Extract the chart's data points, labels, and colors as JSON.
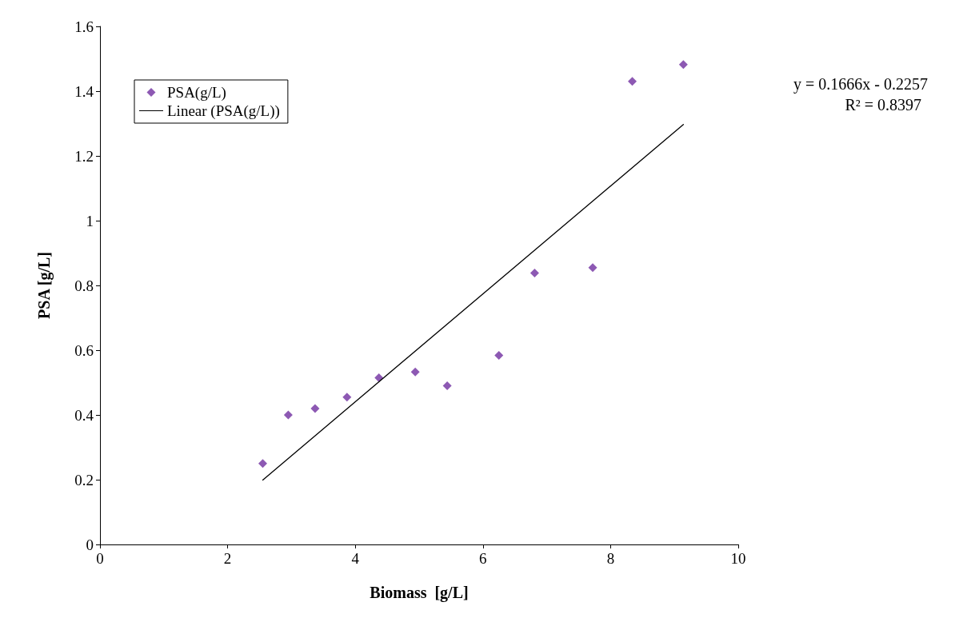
{
  "chart_data": {
    "type": "scatter",
    "xlabel": "Biomass  [g/L]",
    "ylabel": "PSA [g/L]",
    "xlim": [
      0,
      10
    ],
    "xticks": [
      0,
      2,
      4,
      6,
      8,
      10
    ],
    "ylim": [
      0,
      1.6
    ],
    "yticks": [
      0,
      0.2,
      0.4,
      0.6,
      0.8,
      1,
      1.2,
      1.4,
      1.6
    ],
    "grid": false,
    "legend": "top left",
    "marker": "diamond",
    "annotations": [
      "y = 0.1666x - 0.2257",
      "R² = 0.8397"
    ],
    "series": [
      {
        "name": "PSA(g/L)",
        "color": "#7030a0",
        "x": [
          2.55,
          2.95,
          3.37,
          3.87,
          4.37,
          4.94,
          5.44,
          6.25,
          6.81,
          7.72,
          8.34,
          9.14
        ],
        "values": [
          0.25,
          0.4,
          0.42,
          0.455,
          0.515,
          0.533,
          0.49,
          0.584,
          0.838,
          0.855,
          1.43,
          1.482
        ]
      },
      {
        "name": "Linear (PSA(g/L))",
        "type": "line",
        "marker": "none",
        "line_style": "solid",
        "color": "#000000",
        "x": [
          2.55,
          9.14
        ],
        "values": [
          0.199,
          1.297
        ]
      }
    ]
  }
}
